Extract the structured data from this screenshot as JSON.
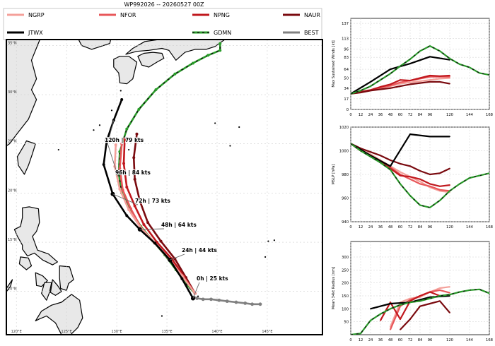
{
  "figure_title": "WP992026 -- 20260527 00Z",
  "legend": [
    {
      "label": "NGRP",
      "color": "#f4a09a"
    },
    {
      "label": "NFOR",
      "color": "#e8575a"
    },
    {
      "label": "NPNG",
      "color": "#c0181e"
    },
    {
      "label": "NAUR",
      "color": "#7a0a0f"
    },
    {
      "label": "JTWX",
      "color": "#000000"
    },
    {
      "label": "GDMN",
      "color": "#2a9d2a",
      "dashed": true
    },
    {
      "label": "BEST",
      "color": "#808080"
    }
  ],
  "colors": {
    "land": "#e8e8e8",
    "grid": "#cfcfcf",
    "green_dash": "#111111"
  },
  "chart_data": [
    {
      "type": "map-track",
      "lon_ticks": [
        "120°E",
        "125°E",
        "130°E",
        "135°E",
        "140°E",
        "145°E"
      ],
      "lat_ticks": [
        "10°N",
        "15°N",
        "20°N",
        "25°N",
        "30°N",
        "35°N"
      ],
      "lon_range": [
        119,
        150.5
      ],
      "lat_range": [
        5.6,
        35.6
      ],
      "annotations": [
        "0h | 25 kts",
        "24h | 44 kts",
        "48h | 64 kts",
        "72h | 73 kts",
        "96h | 84 kts",
        "120h | 79 kts"
      ],
      "tracks": [
        {
          "name": "BEST",
          "points": [
            [
              144.3,
              8.7
            ],
            [
              143.5,
              8.7
            ],
            [
              142.8,
              8.8
            ],
            [
              141.9,
              8.9
            ],
            [
              141.0,
              9.0
            ],
            [
              140.2,
              9.1
            ],
            [
              139.4,
              9.2
            ],
            [
              138.6,
              9.2
            ],
            [
              138.0,
              9.3
            ],
            [
              137.7,
              9.4
            ]
          ]
        },
        {
          "name": "GDMN",
          "points": [
            [
              137.8,
              9.8
            ],
            [
              136.8,
              10.9
            ],
            [
              135.9,
              12.2
            ],
            [
              134.8,
              13.7
            ],
            [
              133.7,
              15.0
            ],
            [
              132.4,
              16.6
            ],
            [
              131.3,
              18.4
            ],
            [
              130.5,
              20.0
            ],
            [
              130.2,
              22.0
            ],
            [
              130.3,
              24.2
            ],
            [
              131.0,
              26.5
            ],
            [
              132.2,
              28.5
            ],
            [
              133.9,
              30.5
            ],
            [
              135.8,
              32.1
            ],
            [
              137.6,
              33.2
            ],
            [
              139.1,
              34.0
            ],
            [
              140.3,
              34.5
            ],
            [
              140.3,
              35.2
            ]
          ]
        },
        {
          "name": "JTWX",
          "points": [
            [
              137.6,
              9.3
            ],
            [
              136.5,
              11.3
            ],
            [
              135.3,
              13.2
            ],
            [
              133.8,
              14.9
            ],
            [
              132.3,
              16.3
            ],
            [
              131.0,
              17.7
            ],
            [
              129.6,
              19.9
            ],
            [
              128.7,
              22.9
            ],
            [
              129.0,
              25.3
            ],
            [
              129.7,
              27.4
            ],
            [
              130.5,
              29.5
            ]
          ]
        },
        {
          "name": "NGRP",
          "points": [
            [
              137.8,
              9.8
            ],
            [
              136.5,
              11.6
            ],
            [
              135.2,
              13.3
            ],
            [
              133.7,
              15.0
            ],
            [
              132.3,
              16.6
            ],
            [
              131.2,
              18.3
            ],
            [
              130.3,
              20.4
            ],
            [
              129.8,
              22.7
            ],
            [
              129.9,
              24.9
            ]
          ]
        },
        {
          "name": "NFOR",
          "points": [
            [
              137.8,
              9.8
            ],
            [
              136.6,
              11.5
            ],
            [
              135.3,
              13.2
            ],
            [
              133.8,
              14.9
            ],
            [
              132.4,
              16.5
            ],
            [
              131.4,
              18.4
            ],
            [
              130.6,
              20.3
            ],
            [
              130.3,
              22.5
            ],
            [
              130.5,
              25.0
            ]
          ]
        },
        {
          "name": "NPNG",
          "points": [
            [
              137.8,
              9.8
            ],
            [
              136.7,
              11.5
            ],
            [
              135.5,
              13.3
            ],
            [
              134.0,
              15.0
            ],
            [
              132.7,
              16.8
            ],
            [
              131.8,
              18.7
            ],
            [
              131.0,
              20.6
            ],
            [
              130.7,
              23.0
            ],
            [
              130.8,
              25.5
            ]
          ]
        },
        {
          "name": "NAUR",
          "points": [
            [
              137.8,
              9.8
            ],
            [
              136.9,
              11.4
            ],
            [
              135.8,
              13.3
            ],
            [
              134.4,
              15.1
            ],
            [
              133.1,
              17.0
            ],
            [
              132.3,
              19.2
            ],
            [
              131.8,
              21.4
            ],
            [
              131.7,
              23.6
            ],
            [
              132.0,
              26.0
            ]
          ]
        }
      ]
    },
    {
      "type": "line",
      "ylabel": "Max Sustained Winds [kt]",
      "yticks": [
        0,
        17,
        34,
        50,
        64,
        83,
        96,
        113,
        137
      ],
      "ylim": [
        0,
        145
      ],
      "xticks": [
        0,
        12,
        24,
        36,
        48,
        60,
        72,
        84,
        96,
        120,
        144,
        168
      ],
      "xlim": [
        0,
        168
      ],
      "series": [
        {
          "name": "NGRP",
          "x": [
            0,
            12,
            24,
            36,
            48,
            60,
            72,
            84,
            96,
            108,
            120
          ],
          "y": [
            25,
            27,
            30,
            34,
            37,
            41,
            43,
            45,
            47,
            49,
            50
          ]
        },
        {
          "name": "NFOR",
          "x": [
            0,
            12,
            24,
            36,
            48,
            60,
            72,
            84,
            96,
            108,
            120
          ],
          "y": [
            25,
            28,
            31,
            35,
            38,
            43,
            46,
            49,
            52,
            52,
            52
          ]
        },
        {
          "name": "NPNG",
          "x": [
            0,
            12,
            24,
            36,
            48,
            60,
            72,
            84,
            96,
            108,
            120
          ],
          "y": [
            25,
            28,
            31,
            36,
            40,
            47,
            46,
            50,
            54,
            53,
            54
          ]
        },
        {
          "name": "NAUR",
          "x": [
            0,
            12,
            24,
            36,
            48,
            60,
            72,
            84,
            96,
            108,
            120
          ],
          "y": [
            25,
            27,
            30,
            32,
            34,
            37,
            40,
            42,
            44,
            44,
            41
          ]
        },
        {
          "name": "JTWX",
          "x": [
            0,
            24,
            48,
            72,
            96,
            120
          ],
          "y": [
            25,
            44,
            64,
            73,
            84,
            79
          ]
        },
        {
          "name": "GDMN",
          "x": [
            0,
            12,
            24,
            36,
            48,
            60,
            72,
            84,
            96,
            108,
            120,
            132,
            144,
            156,
            168
          ],
          "y": [
            25,
            30,
            37,
            47,
            57,
            69,
            80,
            93,
            101,
            93,
            81,
            72,
            67,
            58,
            55
          ]
        }
      ]
    },
    {
      "type": "line",
      "ylabel": "MSLP [hPa]",
      "yticks": [
        940,
        960,
        980,
        1000,
        1020
      ],
      "ylim": [
        940,
        1020
      ],
      "xticks": [
        0,
        12,
        24,
        36,
        48,
        60,
        72,
        84,
        96,
        120,
        144,
        168
      ],
      "xlim": [
        0,
        168
      ],
      "series": [
        {
          "name": "NGRP",
          "x": [
            0,
            12,
            24,
            36,
            48,
            60,
            72,
            84,
            96,
            108,
            120
          ],
          "y": [
            1006,
            1001,
            997,
            992,
            987,
            982,
            978,
            974,
            969,
            966,
            965
          ]
        },
        {
          "name": "NFOR",
          "x": [
            0,
            12,
            24,
            36,
            48,
            60,
            72,
            84,
            96,
            108,
            120
          ],
          "y": [
            1006,
            1000,
            996,
            991,
            986,
            980,
            976,
            972,
            970,
            967,
            966
          ]
        },
        {
          "name": "NPNG",
          "x": [
            0,
            12,
            24,
            36,
            48,
            60,
            72,
            84,
            96,
            108,
            120
          ],
          "y": [
            1006,
            1000,
            996,
            991,
            985,
            979,
            978,
            976,
            972,
            970,
            971
          ]
        },
        {
          "name": "NAUR",
          "x": [
            0,
            12,
            24,
            36,
            48,
            60,
            72,
            84,
            96,
            108,
            120
          ],
          "y": [
            1006,
            1002,
            999,
            996,
            992,
            989,
            987,
            983,
            980,
            981,
            985
          ]
        },
        {
          "name": "JTWX",
          "x": [
            0,
            24,
            48,
            72,
            96,
            120
          ],
          "y": [
            1006,
            996,
            987,
            1014,
            1012,
            1012
          ]
        },
        {
          "name": "GDMN",
          "x": [
            0,
            12,
            24,
            36,
            48,
            60,
            72,
            84,
            96,
            108,
            120,
            132,
            144,
            156,
            168
          ],
          "y": [
            1006,
            1000,
            995,
            990,
            984,
            972,
            962,
            954,
            952,
            958,
            966,
            972,
            977,
            979,
            981
          ]
        }
      ]
    },
    {
      "type": "line",
      "ylabel": "Mean 34kt Radius [nm]",
      "yticks": [
        50,
        100,
        150,
        200,
        250,
        300
      ],
      "ylim": [
        0,
        360
      ],
      "xticks": [
        0,
        12,
        24,
        36,
        48,
        60,
        72,
        84,
        96,
        120,
        144,
        168
      ],
      "xlim": [
        0,
        168
      ],
      "series": [
        {
          "name": "NGRP",
          "x": [
            48,
            60,
            72,
            84,
            96,
            108,
            120
          ],
          "y": [
            30,
            125,
            140,
            145,
            165,
            180,
            185
          ]
        },
        {
          "name": "NFOR",
          "x": [
            48,
            60,
            72,
            84,
            96,
            108,
            120
          ],
          "y": [
            20,
            110,
            135,
            150,
            165,
            172,
            162
          ]
        },
        {
          "name": "NPNG",
          "x": [
            36,
            48,
            60,
            72,
            84,
            96,
            108,
            120
          ],
          "y": [
            55,
            125,
            60,
            130,
            150,
            165,
            150,
            155
          ]
        },
        {
          "name": "NAUR",
          "x": [
            60,
            72,
            84,
            96,
            108,
            120
          ],
          "y": [
            20,
            60,
            110,
            120,
            130,
            85
          ]
        },
        {
          "name": "JTWX",
          "x": [
            24,
            48,
            72,
            96,
            120
          ],
          "y": [
            100,
            120,
            125,
            145,
            150
          ]
        },
        {
          "name": "GDMN",
          "x": [
            0,
            12,
            24,
            36,
            48,
            60,
            72,
            84,
            96,
            108,
            120,
            132,
            144,
            156,
            168
          ],
          "y": [
            0,
            5,
            55,
            80,
            100,
            115,
            125,
            130,
            140,
            150,
            155,
            165,
            172,
            175,
            160
          ]
        }
      ]
    }
  ]
}
